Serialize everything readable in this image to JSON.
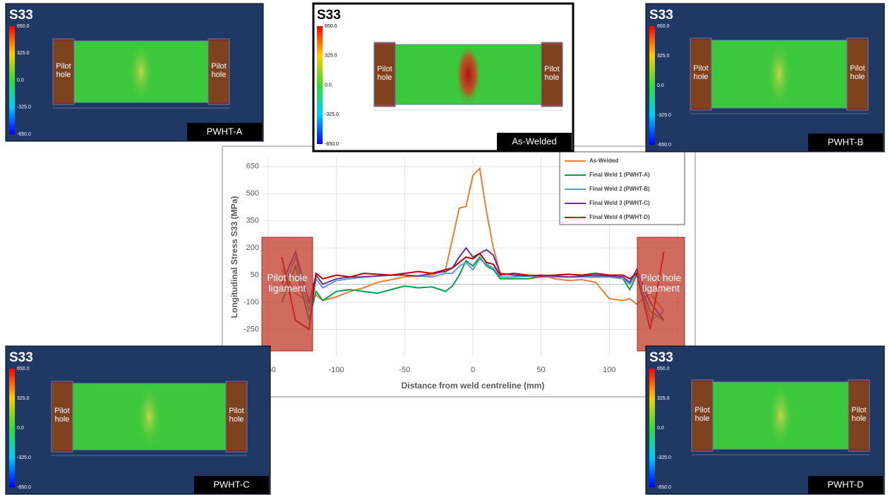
{
  "chart_data": {
    "type": "line",
    "x_label": "Distance from weld centreline (mm)",
    "y_label": "Longitudinal Stress S33 (MPa)",
    "annotations": [
      "Pilot hole ligament",
      "Pilot hole ligament"
    ],
    "x": [
      -140,
      -130,
      -120,
      -115,
      -110,
      -100,
      -90,
      -80,
      -70,
      -60,
      -50,
      -40,
      -30,
      -20,
      -15,
      -10,
      -5,
      0,
      5,
      10,
      15,
      20,
      30,
      40,
      50,
      60,
      70,
      80,
      90,
      100,
      110,
      115,
      120,
      130,
      140
    ],
    "series": [
      {
        "name": "As-Welded",
        "color": "#ed7d31",
        "values": [
          80,
          -50,
          -100,
          -60,
          -90,
          -70,
          -40,
          -20,
          10,
          25,
          40,
          45,
          50,
          80,
          250,
          420,
          430,
          600,
          640,
          400,
          200,
          60,
          50,
          45,
          50,
          30,
          20,
          25,
          10,
          -80,
          -90,
          -80,
          -110,
          -50,
          -150
        ]
      },
      {
        "name": "Final Weld 1 (PWHT-A)",
        "color": "#00a050",
        "values": [
          -100,
          100,
          -200,
          -40,
          -90,
          -40,
          -30,
          -40,
          -50,
          -30,
          -10,
          -20,
          -15,
          -40,
          -10,
          50,
          130,
          100,
          150,
          100,
          80,
          30,
          30,
          30,
          40,
          45,
          40,
          40,
          40,
          40,
          30,
          -30,
          50,
          -150,
          -200
        ]
      },
      {
        "name": "Final Weld 2 (PWHT-B)",
        "color": "#5b9bd5",
        "values": [
          -50,
          150,
          -150,
          30,
          -20,
          20,
          30,
          40,
          45,
          50,
          50,
          45,
          40,
          60,
          60,
          100,
          120,
          80,
          140,
          110,
          90,
          40,
          40,
          45,
          40,
          40,
          40,
          40,
          45,
          40,
          30,
          0,
          60,
          -200,
          -150
        ]
      },
      {
        "name": "Final Weld 3 (PWHT-C)",
        "color": "#7030a0",
        "values": [
          0,
          180,
          -100,
          50,
          0,
          30,
          40,
          40,
          45,
          50,
          50,
          45,
          60,
          70,
          90,
          150,
          200,
          150,
          170,
          190,
          160,
          60,
          50,
          45,
          50,
          45,
          40,
          45,
          50,
          45,
          40,
          10,
          80,
          -100,
          -200
        ]
      },
      {
        "name": "Final Weld 4 (PWHT-D)",
        "color": "#c00000",
        "values": [
          150,
          -200,
          -250,
          60,
          30,
          50,
          40,
          60,
          55,
          50,
          60,
          70,
          60,
          80,
          90,
          120,
          150,
          140,
          170,
          120,
          110,
          50,
          60,
          50,
          45,
          50,
          55,
          50,
          60,
          50,
          50,
          30,
          60,
          -250,
          180
        ]
      }
    ],
    "xlim": [
      -150,
      150
    ],
    "xticks": [
      -150,
      -100,
      -50,
      0,
      50,
      100,
      150
    ],
    "ylim": [
      -400,
      700
    ],
    "yticks": [
      -250,
      -100,
      50,
      200,
      350,
      500,
      650
    ],
    "grid": true
  },
  "panel_title": "S33",
  "pilot_hole": "Pilot hole",
  "colorbar_labels": [
    "650.0",
    "325.0",
    "0.0",
    "-325.0",
    "-650.0"
  ],
  "panels": [
    {
      "label": "PWHT-A"
    },
    {
      "label": "As-Welded"
    },
    {
      "label": "PWHT-B"
    },
    {
      "label": "PWHT-C"
    },
    {
      "label": "PWHT-D"
    }
  ]
}
